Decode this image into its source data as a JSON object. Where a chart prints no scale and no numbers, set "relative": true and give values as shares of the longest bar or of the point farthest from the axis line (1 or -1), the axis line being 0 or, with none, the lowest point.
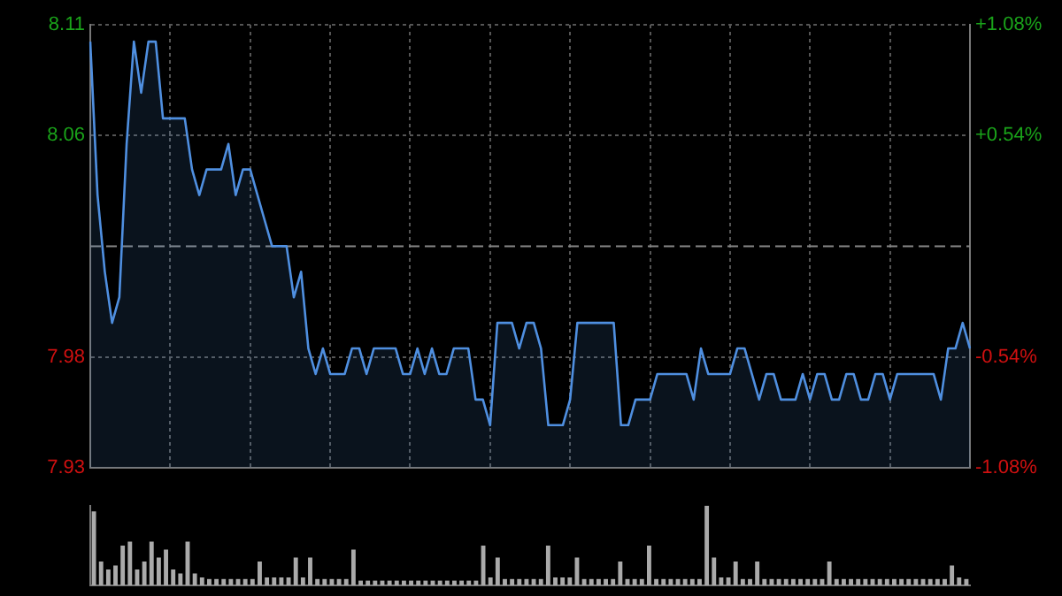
{
  "chart_data": [
    {
      "type": "area",
      "categories": [
        null,
        null,
        null,
        null,
        null,
        null,
        null,
        null,
        null,
        null,
        null,
        null,
        null,
        null,
        null,
        null,
        null,
        null,
        null,
        null,
        null,
        null,
        null,
        null,
        null,
        null,
        null,
        null,
        null,
        null,
        null,
        null,
        null,
        null,
        null,
        null,
        null,
        null,
        null,
        null,
        null,
        null,
        null,
        null,
        null,
        null,
        null,
        null,
        null,
        null,
        null,
        null,
        null,
        null,
        null,
        null,
        null,
        null,
        null,
        null,
        null,
        null,
        null,
        null,
        null,
        null,
        null,
        null,
        null,
        null,
        null,
        null,
        null,
        null,
        null,
        null,
        null,
        null,
        null,
        null,
        null,
        null,
        null,
        null,
        null,
        null,
        null,
        null,
        null,
        null,
        null,
        null,
        null,
        null,
        null,
        null,
        null,
        null,
        null,
        null,
        null,
        null,
        null,
        null,
        null,
        null,
        null,
        null,
        null,
        null,
        null,
        null,
        null,
        null,
        null,
        null,
        null,
        null,
        null,
        null,
        null,
        null
      ],
      "series": [
        {
          "color": "#4f8fe0",
          "values": [
            8.1,
            8.04,
            8.01,
            7.99,
            8.0,
            8.06,
            8.1,
            8.08,
            8.1,
            8.1,
            8.07,
            8.07,
            8.07,
            8.07,
            8.05,
            8.04,
            8.05,
            8.05,
            8.05,
            8.06,
            8.04,
            8.05,
            8.05,
            8.04,
            8.03,
            8.02,
            8.02,
            8.02,
            8.0,
            8.01,
            7.98,
            7.97,
            7.98,
            7.97,
            7.97,
            7.97,
            7.98,
            7.98,
            7.97,
            7.98,
            7.98,
            7.98,
            7.98,
            7.97,
            7.97,
            7.98,
            7.97,
            7.98,
            7.97,
            7.97,
            7.98,
            7.98,
            7.98,
            7.96,
            7.96,
            7.95,
            7.99,
            7.99,
            7.99,
            7.98,
            7.99,
            7.99,
            7.98,
            7.95,
            7.95,
            7.95,
            7.96,
            7.99,
            7.99,
            7.99,
            7.99,
            7.99,
            7.99,
            7.95,
            7.95,
            7.96,
            7.96,
            7.96,
            7.97,
            7.97,
            7.97,
            7.97,
            7.97,
            7.96,
            7.98,
            7.97,
            7.97,
            7.97,
            7.97,
            7.98,
            7.98,
            7.97,
            7.96,
            7.97,
            7.97,
            7.96,
            7.96,
            7.96,
            7.97,
            7.96,
            7.97,
            7.97,
            7.96,
            7.96,
            7.97,
            7.97,
            7.96,
            7.96,
            7.97,
            7.97,
            7.96,
            7.97,
            7.97,
            7.97,
            7.97,
            7.97,
            7.97,
            7.96,
            7.98,
            7.98,
            7.99,
            7.98
          ]
        }
      ],
      "ylim": [
        7.9334,
        8.1066
      ],
      "yticks": [
        {
          "value": 8.1066,
          "label": "8.11"
        },
        {
          "value": 8.0633,
          "label": "8.06"
        },
        {
          "value": 7.9767,
          "label": "7.98"
        },
        {
          "value": 7.9334,
          "label": "7.93"
        }
      ],
      "y2lim": [
        -1.08,
        1.08
      ],
      "y2ticks": [
        {
          "value": 1.08,
          "label": "+1.08%"
        },
        {
          "value": 0.54,
          "label": "+0.54%"
        },
        {
          "value": -0.54,
          "label": "-0.54%"
        },
        {
          "value": -1.08,
          "label": "-1.08%"
        }
      ],
      "ref_lines": [
        {
          "axis": "y",
          "value": 8.02,
          "color": "#888888",
          "line_style": "dashed"
        }
      ],
      "grid": true,
      "legend": false
    },
    {
      "type": "bar",
      "relative": true,
      "color": "#aaaaaa",
      "categories": [
        null,
        null,
        null,
        null,
        null,
        null,
        null,
        null,
        null,
        null,
        null,
        null,
        null,
        null,
        null,
        null,
        null,
        null,
        null,
        null,
        null,
        null,
        null,
        null,
        null,
        null,
        null,
        null,
        null,
        null,
        null,
        null,
        null,
        null,
        null,
        null,
        null,
        null,
        null,
        null,
        null,
        null,
        null,
        null,
        null,
        null,
        null,
        null,
        null,
        null,
        null,
        null,
        null,
        null,
        null,
        null,
        null,
        null,
        null,
        null,
        null,
        null,
        null,
        null,
        null,
        null,
        null,
        null,
        null,
        null,
        null,
        null,
        null,
        null,
        null,
        null,
        null,
        null,
        null,
        null,
        null,
        null,
        null,
        null,
        null,
        null,
        null,
        null,
        null,
        null,
        null,
        null,
        null,
        null,
        null,
        null,
        null,
        null,
        null,
        null,
        null,
        null,
        null,
        null,
        null,
        null,
        null,
        null,
        null,
        null,
        null,
        null,
        null,
        null,
        null,
        null,
        null,
        null,
        null,
        null,
        null,
        null
      ],
      "values": [
        0.93,
        0.3,
        0.2,
        0.25,
        0.5,
        0.55,
        0.2,
        0.3,
        0.55,
        0.35,
        0.45,
        0.2,
        0.15,
        0.55,
        0.15,
        0.1,
        0.08,
        0.08,
        0.08,
        0.08,
        0.08,
        0.08,
        0.08,
        0.3,
        0.1,
        0.1,
        0.1,
        0.1,
        0.35,
        0.1,
        0.35,
        0.08,
        0.08,
        0.08,
        0.08,
        0.08,
        0.45,
        0.06,
        0.06,
        0.06,
        0.06,
        0.06,
        0.06,
        0.06,
        0.06,
        0.06,
        0.06,
        0.06,
        0.06,
        0.06,
        0.06,
        0.06,
        0.06,
        0.06,
        0.5,
        0.1,
        0.35,
        0.08,
        0.08,
        0.08,
        0.08,
        0.08,
        0.08,
        0.5,
        0.1,
        0.1,
        0.1,
        0.35,
        0.08,
        0.08,
        0.08,
        0.08,
        0.08,
        0.3,
        0.08,
        0.08,
        0.08,
        0.5,
        0.08,
        0.08,
        0.08,
        0.08,
        0.08,
        0.08,
        0.08,
        1,
        0.35,
        0.1,
        0.1,
        0.3,
        0.08,
        0.08,
        0.3,
        0.08,
        0.08,
        0.08,
        0.08,
        0.08,
        0.08,
        0.08,
        0.08,
        0.08,
        0.3,
        0.08,
        0.08,
        0.08,
        0.08,
        0.08,
        0.08,
        0.08,
        0.08,
        0.08,
        0.08,
        0.08,
        0.08,
        0.08,
        0.08,
        0.08,
        0.08,
        0.25,
        0.1,
        0.08
      ],
      "legend": false
    }
  ]
}
